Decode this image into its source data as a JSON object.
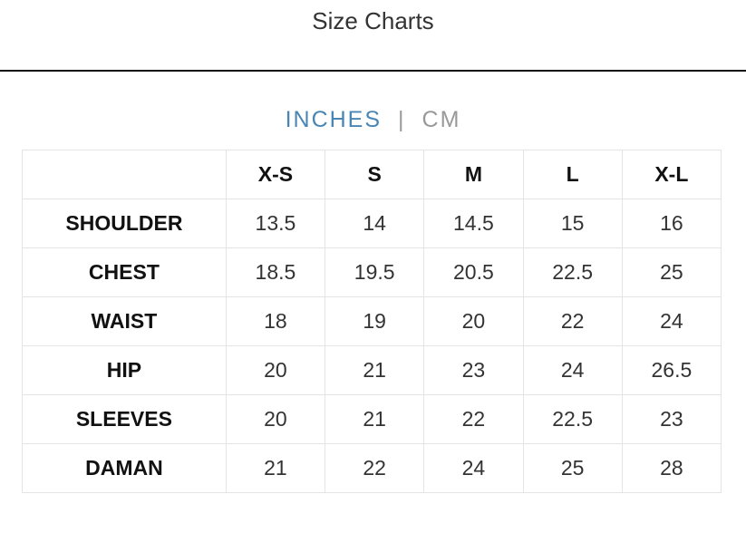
{
  "title": "Size Charts",
  "units": {
    "inches": "INCHES",
    "separator": "|",
    "cm": "CM",
    "active": "INCHES",
    "active_color": "#4a86b4"
  },
  "table": {
    "headers": [
      "",
      "X-S",
      "S",
      "M",
      "L",
      "X-L"
    ],
    "rows": [
      {
        "label": "SHOULDER",
        "values": [
          "13.5",
          "14",
          "14.5",
          "15",
          "16"
        ]
      },
      {
        "label": "CHEST",
        "values": [
          "18.5",
          "19.5",
          "20.5",
          "22.5",
          "25"
        ]
      },
      {
        "label": "WAIST",
        "values": [
          "18",
          "19",
          "20",
          "22",
          "24"
        ]
      },
      {
        "label": "HIP",
        "values": [
          "20",
          "21",
          "23",
          "24",
          "26.5"
        ]
      },
      {
        "label": "SLEEVES",
        "values": [
          "20",
          "21",
          "22",
          "22.5",
          "23"
        ]
      },
      {
        "label": "DAMAN",
        "values": [
          "21",
          "22",
          "24",
          "25",
          "28"
        ]
      }
    ]
  }
}
